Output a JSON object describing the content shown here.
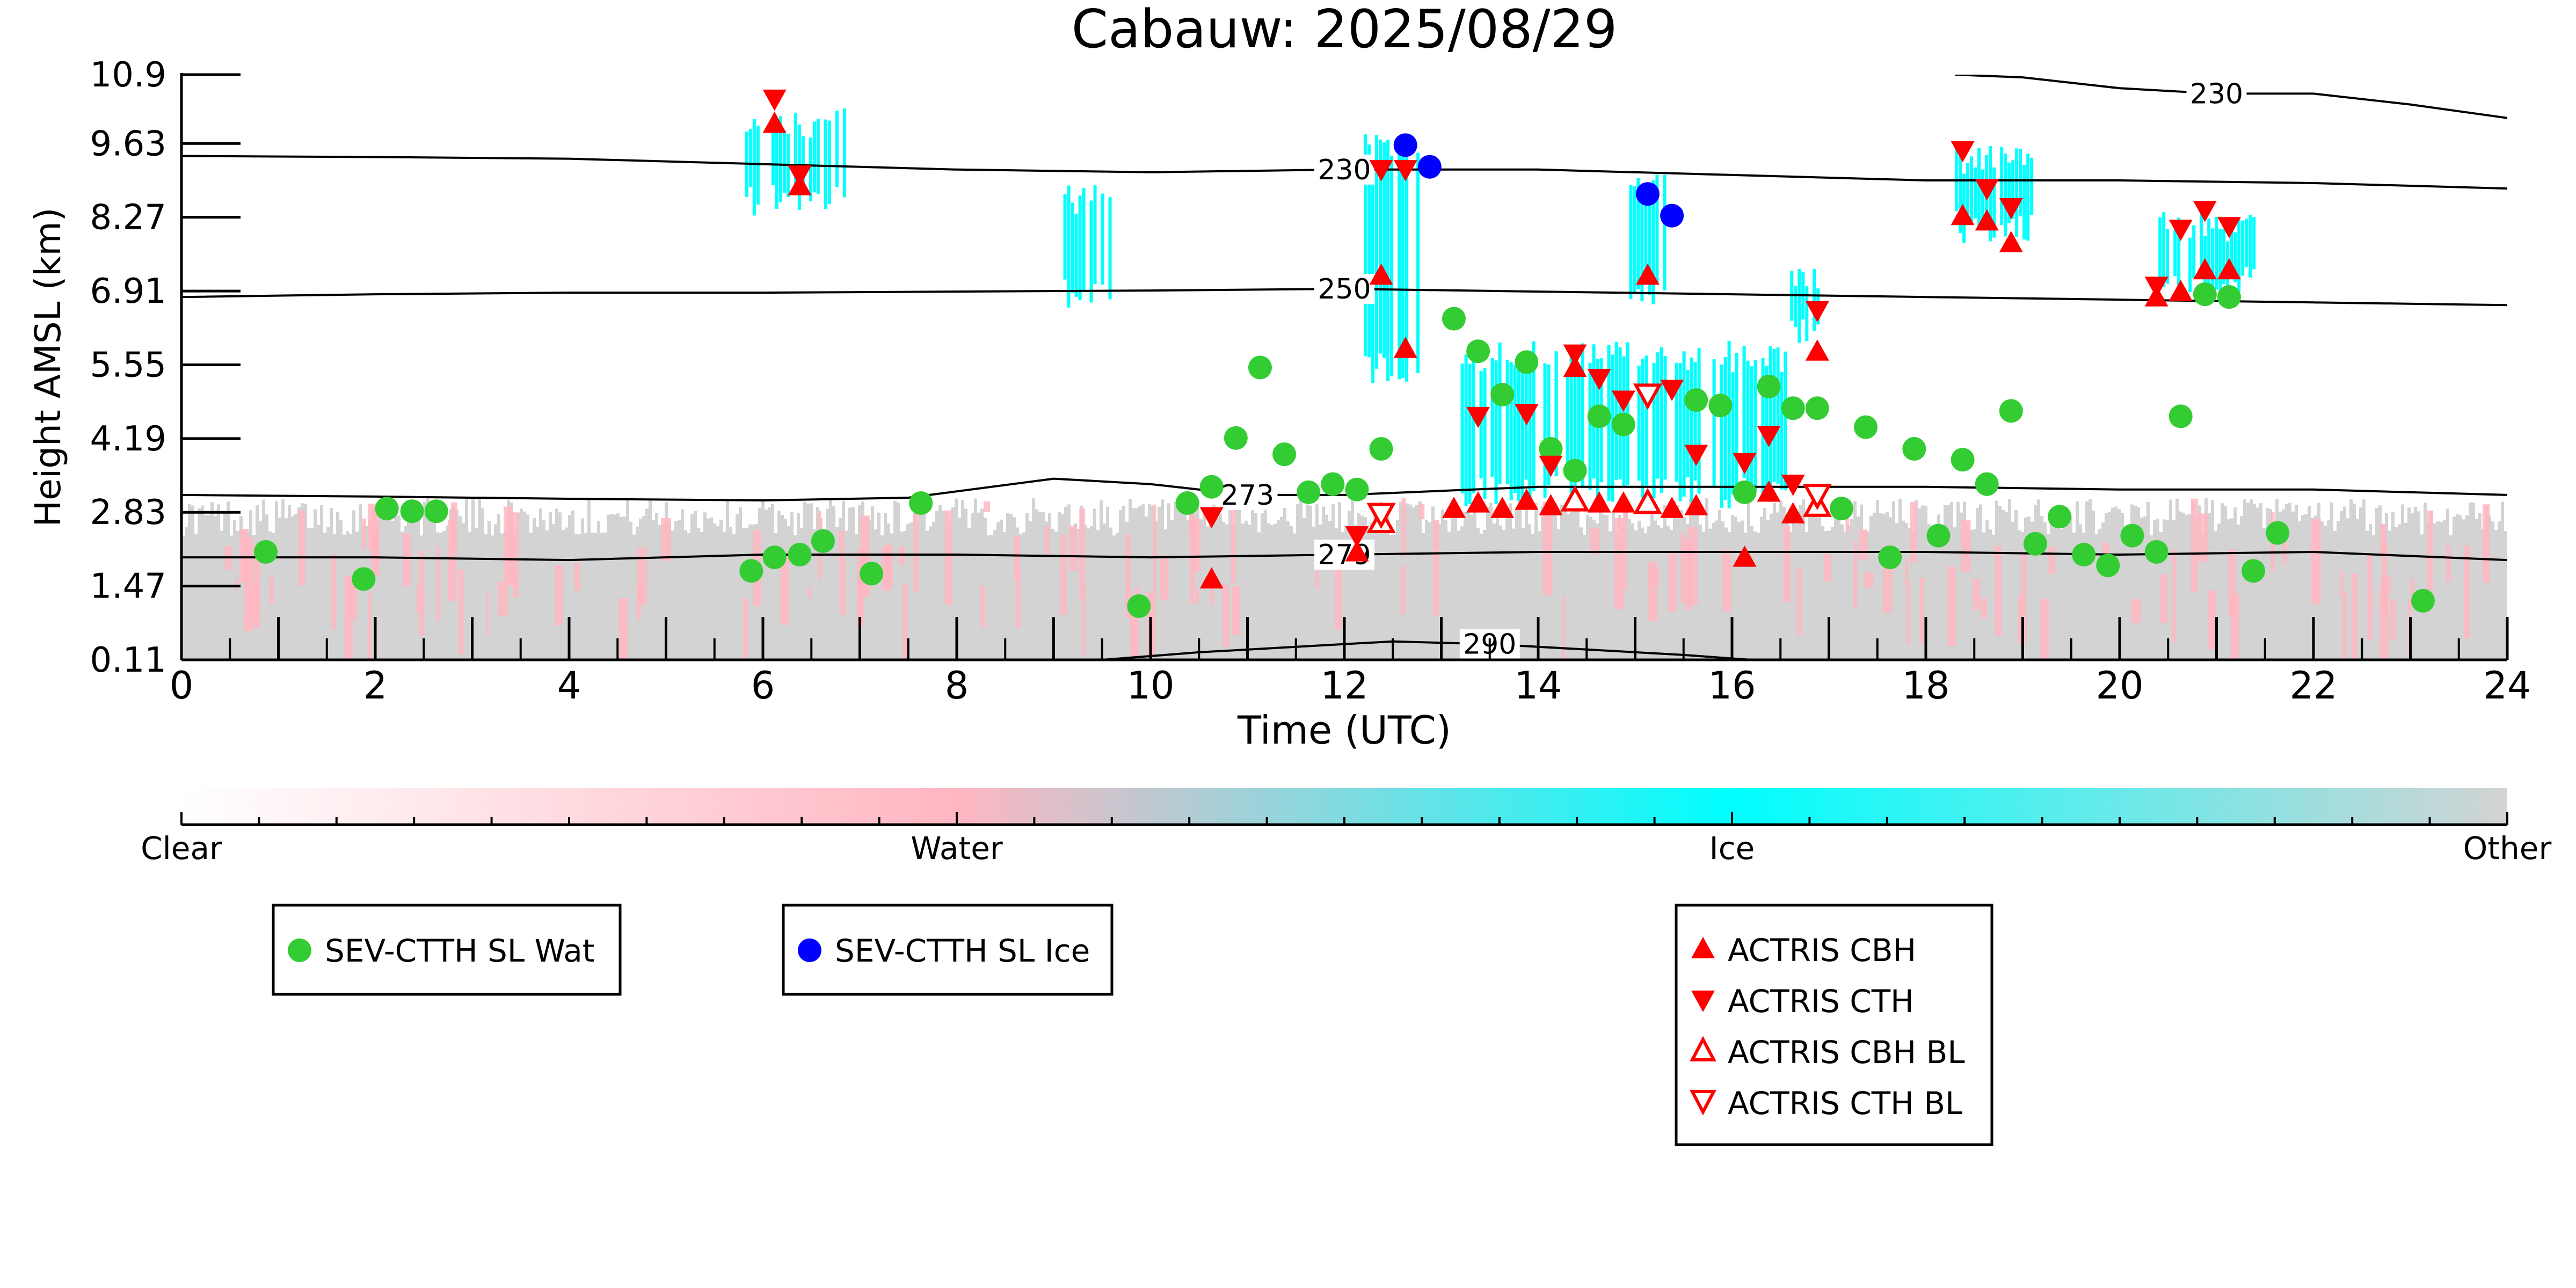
{
  "chart_data": {
    "type": "scatter",
    "title": "Cabauw: 2025/08/29",
    "xlabel": "Time (UTC)",
    "ylabel": "Height AMSL (km)",
    "xlim": [
      0,
      24
    ],
    "ylim": [
      0.11,
      10.9
    ],
    "x_ticks": [
      "0",
      "2",
      "4",
      "6",
      "8",
      "10",
      "12",
      "14",
      "16",
      "18",
      "20",
      "22",
      "24"
    ],
    "y_ticks": [
      "0.11",
      "1.47",
      "2.83",
      "4.19",
      "5.55",
      "6.91",
      "8.27",
      "9.63",
      "10.9"
    ],
    "grid": false,
    "background_field": {
      "colorbar_labels": [
        "Clear",
        "Water",
        "Ice",
        "Other"
      ],
      "colors": {
        "clear": "#ffffff",
        "water": "#ffb6c1",
        "ice": "#00ffff",
        "other": "#d3d3d3"
      },
      "boundary_layer_other_top_km": 2.9,
      "ice_columns": [
        {
          "x": [
            5.7,
            6.9
          ],
          "y": [
            8.3,
            10.3
          ]
        },
        {
          "x": [
            9.1,
            9.6
          ],
          "y": [
            6.6,
            8.9
          ]
        },
        {
          "x": [
            12.2,
            12.8
          ],
          "y": [
            5.2,
            10.0
          ]
        },
        {
          "x": [
            13.2,
            16.6
          ],
          "y": [
            2.9,
            6.0
          ]
        },
        {
          "x": [
            14.9,
            15.3
          ],
          "y": [
            6.6,
            9.3
          ]
        },
        {
          "x": [
            16.6,
            16.9
          ],
          "y": [
            5.8,
            7.4
          ]
        },
        {
          "x": [
            18.3,
            19.1
          ],
          "y": [
            7.8,
            9.6
          ]
        },
        {
          "x": [
            20.4,
            21.4
          ],
          "y": [
            6.8,
            8.4
          ]
        }
      ]
    },
    "isotherms": [
      {
        "label": "230",
        "x": [
          0,
          2,
          4,
          6,
          8,
          10,
          12,
          14,
          16,
          18,
          20,
          22,
          24
        ],
        "y": [
          9.4,
          9.38,
          9.35,
          9.25,
          9.15,
          9.1,
          9.15,
          9.15,
          9.05,
          8.95,
          8.95,
          8.9,
          8.8
        ]
      },
      {
        "label": "230",
        "x": [
          18.3,
          19,
          20,
          21,
          22,
          23,
          24
        ],
        "y": [
          10.9,
          10.85,
          10.65,
          10.55,
          10.55,
          10.35,
          10.1
        ]
      },
      {
        "label": "250",
        "x": [
          0,
          2,
          4,
          6,
          8,
          10,
          12,
          14,
          16,
          18,
          20,
          22,
          24
        ],
        "y": [
          6.8,
          6.85,
          6.88,
          6.88,
          6.9,
          6.92,
          6.95,
          6.9,
          6.85,
          6.8,
          6.75,
          6.7,
          6.65
        ]
      },
      {
        "label": "273",
        "x": [
          0,
          2,
          4,
          6,
          7.5,
          9,
          10,
          11,
          12,
          14,
          16,
          18,
          20,
          22,
          24
        ],
        "y": [
          3.15,
          3.12,
          3.08,
          3.05,
          3.1,
          3.45,
          3.35,
          3.15,
          3.15,
          3.3,
          3.3,
          3.3,
          3.25,
          3.25,
          3.15
        ]
      },
      {
        "label": "279",
        "x": [
          0,
          2,
          4,
          6,
          8,
          10,
          12,
          14,
          16,
          18,
          20,
          22,
          24
        ],
        "y": [
          2.0,
          2.0,
          1.95,
          2.05,
          2.05,
          2.0,
          2.05,
          2.1,
          2.1,
          2.1,
          2.05,
          2.1,
          1.95
        ]
      },
      {
        "label": "290",
        "x": [
          9.5,
          10.5,
          11.5,
          12.5,
          13.5,
          14.5,
          15.5,
          16.2
        ],
        "y": [
          0.11,
          0.25,
          0.35,
          0.45,
          0.4,
          0.3,
          0.2,
          0.11
        ]
      }
    ],
    "series": [
      {
        "name": "SEV-CTTH SL Wat",
        "marker": "circle",
        "color": "#33cc33",
        "x": [
          0.87,
          1.88,
          2.12,
          2.38,
          2.63,
          5.88,
          6.12,
          6.38,
          6.62,
          7.12,
          7.63,
          9.88,
          10.38,
          10.63,
          10.88,
          11.13,
          11.38,
          11.63,
          11.88,
          12.13,
          12.38,
          13.13,
          13.38,
          13.63,
          13.88,
          14.13,
          14.38,
          14.63,
          14.88,
          15.63,
          15.88,
          16.13,
          16.38,
          16.63,
          16.88,
          17.13,
          17.38,
          17.63,
          17.88,
          18.13,
          18.38,
          18.63,
          18.88,
          19.13,
          19.38,
          19.63,
          19.88,
          20.13,
          20.38,
          20.63,
          20.88,
          21.13,
          21.38,
          21.63,
          23.13
        ],
        "y": [
          2.1,
          1.6,
          2.9,
          2.85,
          2.85,
          1.75,
          2.0,
          2.05,
          2.3,
          1.7,
          3.0,
          1.1,
          3.0,
          3.3,
          4.2,
          5.5,
          3.9,
          3.2,
          3.35,
          3.25,
          4.0,
          6.4,
          5.8,
          5.0,
          5.6,
          4.0,
          3.6,
          4.6,
          4.45,
          4.9,
          4.8,
          3.2,
          5.15,
          4.75,
          4.75,
          2.9,
          4.4,
          2.0,
          4.0,
          2.4,
          3.8,
          3.35,
          4.7,
          2.25,
          2.75,
          2.05,
          1.85,
          2.4,
          2.1,
          4.6,
          6.85,
          6.8,
          1.75,
          2.45,
          1.2
        ]
      },
      {
        "name": "SEV-CTTH SL Ice",
        "marker": "circle",
        "color": "#0000ff",
        "x": [
          12.63,
          12.88,
          15.13,
          15.38
        ],
        "y": [
          9.6,
          9.2,
          8.7,
          8.3
        ]
      },
      {
        "name": "ACTRIS CBH",
        "marker": "triangle-up",
        "color": "#ff0000",
        "filled": true,
        "x": [
          6.12,
          6.38,
          10.63,
          12.13,
          12.38,
          12.63,
          13.13,
          13.38,
          13.63,
          13.88,
          14.13,
          14.38,
          14.63,
          14.88,
          15.13,
          15.38,
          15.63,
          16.13,
          16.38,
          16.63,
          16.88,
          18.38,
          18.63,
          18.88,
          20.38,
          20.63,
          20.88,
          21.13
        ],
        "y": [
          10.0,
          8.85,
          1.6,
          2.1,
          7.2,
          5.85,
          2.9,
          3.0,
          2.9,
          3.05,
          2.95,
          5.5,
          3.0,
          3.0,
          7.2,
          2.9,
          2.95,
          2.0,
          3.2,
          2.8,
          5.8,
          8.3,
          8.2,
          7.8,
          6.8,
          6.9,
          7.3,
          7.3
        ]
      },
      {
        "name": "ACTRIS CTH",
        "marker": "triangle-down",
        "color": "#ff0000",
        "filled": true,
        "x": [
          6.12,
          6.38,
          10.63,
          12.13,
          12.38,
          12.63,
          13.38,
          13.88,
          14.13,
          14.38,
          14.63,
          14.88,
          15.38,
          15.63,
          16.13,
          16.38,
          16.63,
          16.88,
          18.38,
          18.63,
          18.88,
          20.38,
          20.63,
          20.88,
          21.13
        ],
        "y": [
          10.45,
          9.05,
          2.75,
          2.4,
          9.15,
          9.15,
          4.6,
          4.65,
          3.7,
          5.75,
          5.3,
          4.9,
          5.1,
          3.9,
          3.75,
          4.25,
          3.35,
          6.55,
          9.5,
          8.8,
          8.45,
          7.0,
          8.05,
          8.4,
          8.1
        ]
      },
      {
        "name": "ACTRIS CBH BL",
        "marker": "triangle-up",
        "color": "#ff0000",
        "filled": false,
        "x": [
          12.38,
          14.38,
          15.13,
          16.88
        ],
        "y": [
          2.65,
          3.05,
          3.0,
          2.95
        ]
      },
      {
        "name": "ACTRIS CTH BL",
        "marker": "triangle-down",
        "color": "#ff0000",
        "filled": false,
        "x": [
          12.38,
          15.13,
          16.88
        ],
        "y": [
          2.8,
          5.0,
          3.15
        ]
      }
    ]
  },
  "legends": [
    {
      "entries": [
        {
          "label": "SEV-CTTH SL Wat",
          "marker": "circle",
          "color": "#33cc33",
          "filled": true
        }
      ]
    },
    {
      "entries": [
        {
          "label": "SEV-CTTH SL Ice",
          "marker": "circle",
          "color": "#0000ff",
          "filled": true
        }
      ]
    },
    {
      "entries": [
        {
          "label": "ACTRIS CBH",
          "marker": "triangle-up",
          "color": "#ff0000",
          "filled": true
        },
        {
          "label": "ACTRIS CTH",
          "marker": "triangle-down",
          "color": "#ff0000",
          "filled": true
        },
        {
          "label": "ACTRIS CBH BL",
          "marker": "triangle-up",
          "color": "#ff0000",
          "filled": false
        },
        {
          "label": "ACTRIS CTH BL",
          "marker": "triangle-down",
          "color": "#ff0000",
          "filled": false
        }
      ]
    }
  ]
}
